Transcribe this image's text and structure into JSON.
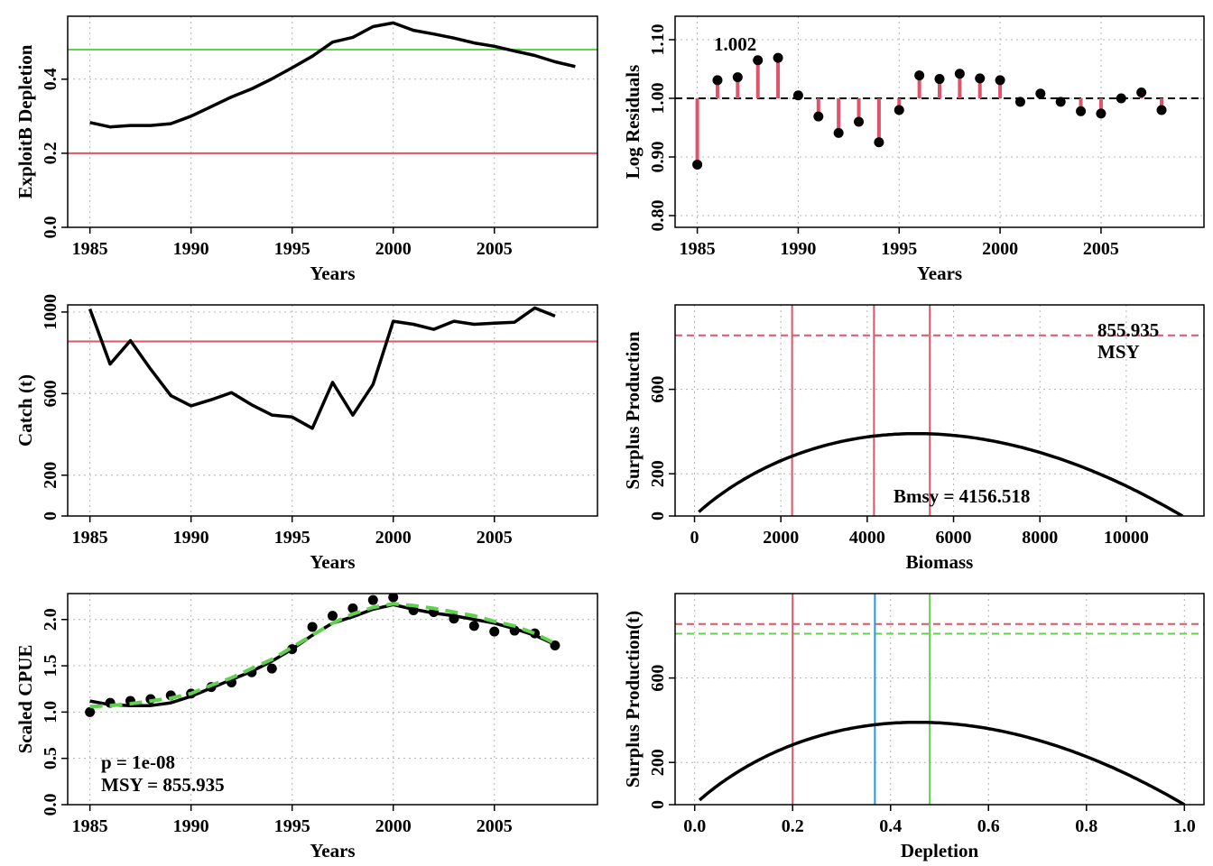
{
  "colors": {
    "black": "#000000",
    "red": "#DF536B",
    "green": "#61D04F",
    "blue": "#2297E6",
    "grid": "#b3b3b3",
    "background": "#ffffff"
  },
  "chart_data": [
    {
      "id": "depletion",
      "type": "line",
      "xlabel": "Years",
      "ylabel": "ExploitB Depletion",
      "xlim": [
        1983.9,
        2010.1
      ],
      "ylim": [
        0,
        0.57
      ],
      "xticks": [
        "1985",
        "1990",
        "1995",
        "2000",
        "2005"
      ],
      "yticks": [
        "0.0",
        "0.2",
        "0.4"
      ],
      "grid": true,
      "series": [
        {
          "x": [
            1985,
            1986,
            1987,
            1988,
            1989,
            1990,
            1991,
            1992,
            1993,
            1994,
            1995,
            1996,
            1997,
            1998,
            1999,
            2000,
            2001,
            2002,
            2003,
            2004,
            2005,
            2006,
            2007,
            2008,
            2009
          ],
          "y": [
            0.283,
            0.271,
            0.275,
            0.275,
            0.28,
            0.3,
            0.326,
            0.352,
            0.374,
            0.401,
            0.431,
            0.462,
            0.5,
            0.513,
            0.542,
            0.552,
            0.532,
            0.522,
            0.511,
            0.498,
            0.489,
            0.476,
            0.464,
            0.447,
            0.434
          ],
          "color": "black"
        }
      ],
      "hlines": [
        {
          "y": 0.2,
          "color": "red"
        },
        {
          "y": 0.48,
          "color": "green"
        }
      ]
    },
    {
      "id": "residuals",
      "type": "scatter",
      "xlabel": "Years",
      "ylabel": "Log Residuals",
      "xlim": [
        1983.9,
        2010.1
      ],
      "ylim": [
        0.78,
        1.14
      ],
      "xticks": [
        "1985",
        "1990",
        "1995",
        "2000",
        "2005"
      ],
      "yticks": [
        "0.80",
        "0.90",
        "1.00",
        "1.10"
      ],
      "grid": true,
      "annotation": "1.002",
      "x": [
        1985,
        1986,
        1987,
        1988,
        1989,
        1990,
        1991,
        1992,
        1993,
        1994,
        1995,
        1996,
        1997,
        1998,
        1999,
        2000,
        2001,
        2002,
        2003,
        2004,
        2005,
        2006,
        2007,
        2008
      ],
      "y": [
        0.887,
        1.031,
        1.036,
        1.065,
        1.069,
        1.005,
        0.969,
        0.941,
        0.96,
        0.925,
        0.98,
        1.039,
        1.033,
        1.042,
        1.034,
        1.031,
        0.994,
        1.008,
        0.994,
        0.978,
        0.974,
        1.0,
        1.01,
        0.98
      ],
      "reference_line": 1.0
    },
    {
      "id": "catch",
      "type": "line",
      "xlabel": "Years",
      "ylabel": "Catch (t)",
      "xlim": [
        1983.9,
        2010.1
      ],
      "ylim": [
        0,
        1035
      ],
      "xticks": [
        "1985",
        "1990",
        "1995",
        "2000",
        "2005"
      ],
      "yticks": [
        "0",
        "200",
        "600",
        "1000"
      ],
      "grid": true,
      "series": [
        {
          "x": [
            1985,
            1986,
            1987,
            1988,
            1989,
            1990,
            1991,
            1992,
            1993,
            1994,
            1995,
            1996,
            1997,
            1998,
            1999,
            2000,
            2001,
            2002,
            2003,
            2004,
            2005,
            2006,
            2007,
            2008
          ],
          "y": [
            1015,
            745,
            860,
            720,
            590,
            540,
            570,
            605,
            545,
            495,
            485,
            430,
            655,
            495,
            645,
            955,
            940,
            915,
            955,
            940,
            945,
            950,
            1020,
            980
          ],
          "color": "black"
        }
      ],
      "hlines": [
        {
          "y": 855.935,
          "color": "red"
        }
      ]
    },
    {
      "id": "production_biomass",
      "type": "line",
      "xlabel": "Biomass",
      "ylabel": "Surplus Production",
      "xlim": [
        -450,
        11800
      ],
      "ylim": [
        0,
        1000
      ],
      "xticks": [
        "0",
        "2000",
        "4000",
        "6000",
        "8000",
        "10000"
      ],
      "yticks": [
        "0",
        "200",
        "600"
      ],
      "grid": true,
      "K": 11300,
      "msy": 855.935,
      "bmsy": 4156.518,
      "annotations": [
        "855.935",
        "MSY",
        "Bmsy = 4156.518"
      ],
      "vlines": [
        {
          "x": 2260,
          "color": "red"
        },
        {
          "x": 4156.518,
          "color": "red"
        },
        {
          "x": 5450,
          "color": "red"
        }
      ],
      "hlines": [
        {
          "y": 855.935,
          "color": "red",
          "dashed": true
        }
      ]
    },
    {
      "id": "cpue",
      "type": "line",
      "xlabel": "Years",
      "ylabel": "Scaled CPUE",
      "xlim": [
        1983.9,
        2010.1
      ],
      "ylim": [
        0,
        2.28
      ],
      "xticks": [
        "1985",
        "1990",
        "1995",
        "2000",
        "2005"
      ],
      "yticks": [
        "0.0",
        "0.5",
        "1.0",
        "1.5",
        "2.0"
      ],
      "grid": true,
      "annotations": [
        "p = 1e-08",
        "MSY = 855.935"
      ],
      "points": {
        "x": [
          1985,
          1986,
          1987,
          1988,
          1989,
          1990,
          1991,
          1992,
          1993,
          1994,
          1995,
          1996,
          1997,
          1998,
          1999,
          2000,
          2001,
          2002,
          2003,
          2004,
          2005,
          2006,
          2007,
          2008
        ],
        "y": [
          1.0,
          1.1,
          1.12,
          1.14,
          1.18,
          1.2,
          1.27,
          1.32,
          1.43,
          1.47,
          1.68,
          1.92,
          2.04,
          2.12,
          2.21,
          2.24,
          2.1,
          2.08,
          2.01,
          1.93,
          1.87,
          1.88,
          1.85,
          1.72
        ]
      },
      "series": [
        {
          "x": [
            1985,
            1986,
            1987,
            1988,
            1989,
            1990,
            1991,
            1992,
            1993,
            1994,
            1995,
            1996,
            1997,
            1998,
            1999,
            2000,
            2001,
            2002,
            2003,
            2004,
            2005,
            2006,
            2007,
            2008
          ],
          "y": [
            1.12,
            1.08,
            1.07,
            1.07,
            1.1,
            1.17,
            1.26,
            1.35,
            1.44,
            1.55,
            1.68,
            1.83,
            1.96,
            2.03,
            2.11,
            2.16,
            2.11,
            2.07,
            2.04,
            2.0,
            1.96,
            1.9,
            1.83,
            1.73
          ],
          "color": "black"
        },
        {
          "x": [
            1985,
            1986,
            1987,
            1988,
            1989,
            1990,
            1991,
            1992,
            1993,
            1994,
            1995,
            1996,
            1997,
            1998,
            1999,
            2000,
            2001,
            2002,
            2003,
            2004,
            2005,
            2006,
            2007,
            2008
          ],
          "y": [
            1.06,
            1.07,
            1.09,
            1.12,
            1.15,
            1.2,
            1.29,
            1.37,
            1.47,
            1.57,
            1.7,
            1.83,
            1.96,
            2.06,
            2.13,
            2.17,
            2.15,
            2.12,
            2.08,
            2.04,
            1.98,
            1.93,
            1.85,
            1.74
          ],
          "color": "green",
          "dashed": true
        }
      ]
    },
    {
      "id": "production_depletion",
      "type": "line",
      "xlabel": "Depletion",
      "ylabel": "Surplus Production(t)",
      "xlim": [
        -0.04,
        1.04
      ],
      "ylim": [
        0,
        1000
      ],
      "xticks": [
        "0.0",
        "0.2",
        "0.4",
        "0.6",
        "0.8",
        "1.0"
      ],
      "yticks": [
        "0",
        "200",
        "600"
      ],
      "grid": true,
      "msy": 855.935,
      "vlines": [
        {
          "x": 0.2,
          "color": "red"
        },
        {
          "x": 0.368,
          "color": "blue"
        },
        {
          "x": 0.48,
          "color": "green"
        }
      ],
      "hlines": [
        {
          "y": 855.935,
          "color": "red",
          "dashed": true
        },
        {
          "y": 810,
          "color": "green",
          "dashed": true
        }
      ]
    }
  ]
}
